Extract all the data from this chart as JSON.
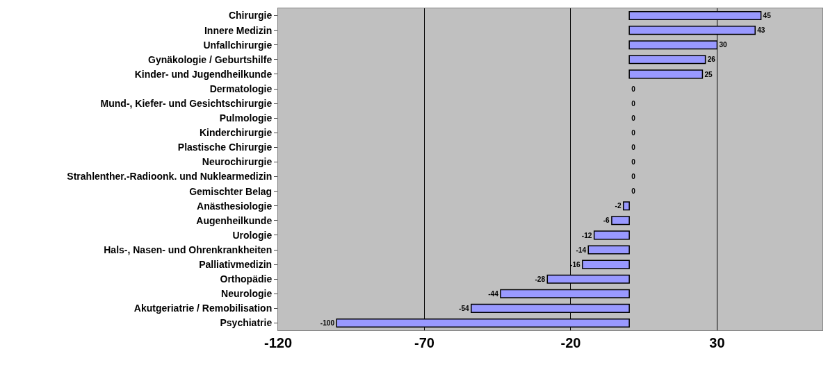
{
  "chart_data": {
    "type": "bar",
    "orientation": "horizontal",
    "categories": [
      "Chirurgie",
      "Innere Medizin",
      "Unfallchirurgie",
      "Gynäkologie / Geburtshilfe",
      "Kinder- und Jugendheilkunde",
      "Dermatologie",
      "Mund-, Kiefer- und Gesichtschirurgie",
      "Pulmologie",
      "Kinderchirurgie",
      "Plastische Chirurgie",
      "Neurochirurgie",
      "Strahlenther.-Radioonk. und Nuklearmedizin",
      "Gemischter Belag",
      "Anästhesiologie",
      "Augenheilkunde",
      "Urologie",
      "Hals-, Nasen- und Ohrenkrankheiten",
      "Palliativmedizin",
      "Orthopädie",
      "Neurologie",
      "Akutgeriatrie / Remobilisation",
      "Psychiatrie"
    ],
    "values": [
      45,
      43,
      30,
      26,
      25,
      0,
      0,
      0,
      0,
      0,
      0,
      0,
      0,
      -2,
      -6,
      -12,
      -14,
      -16,
      -28,
      -44,
      -54,
      -100
    ],
    "color": "#9999ff",
    "xlim": [
      -120,
      66
    ],
    "xticks": [
      -120,
      -70,
      -20,
      30
    ],
    "grid": "x",
    "data_labels": true
  }
}
